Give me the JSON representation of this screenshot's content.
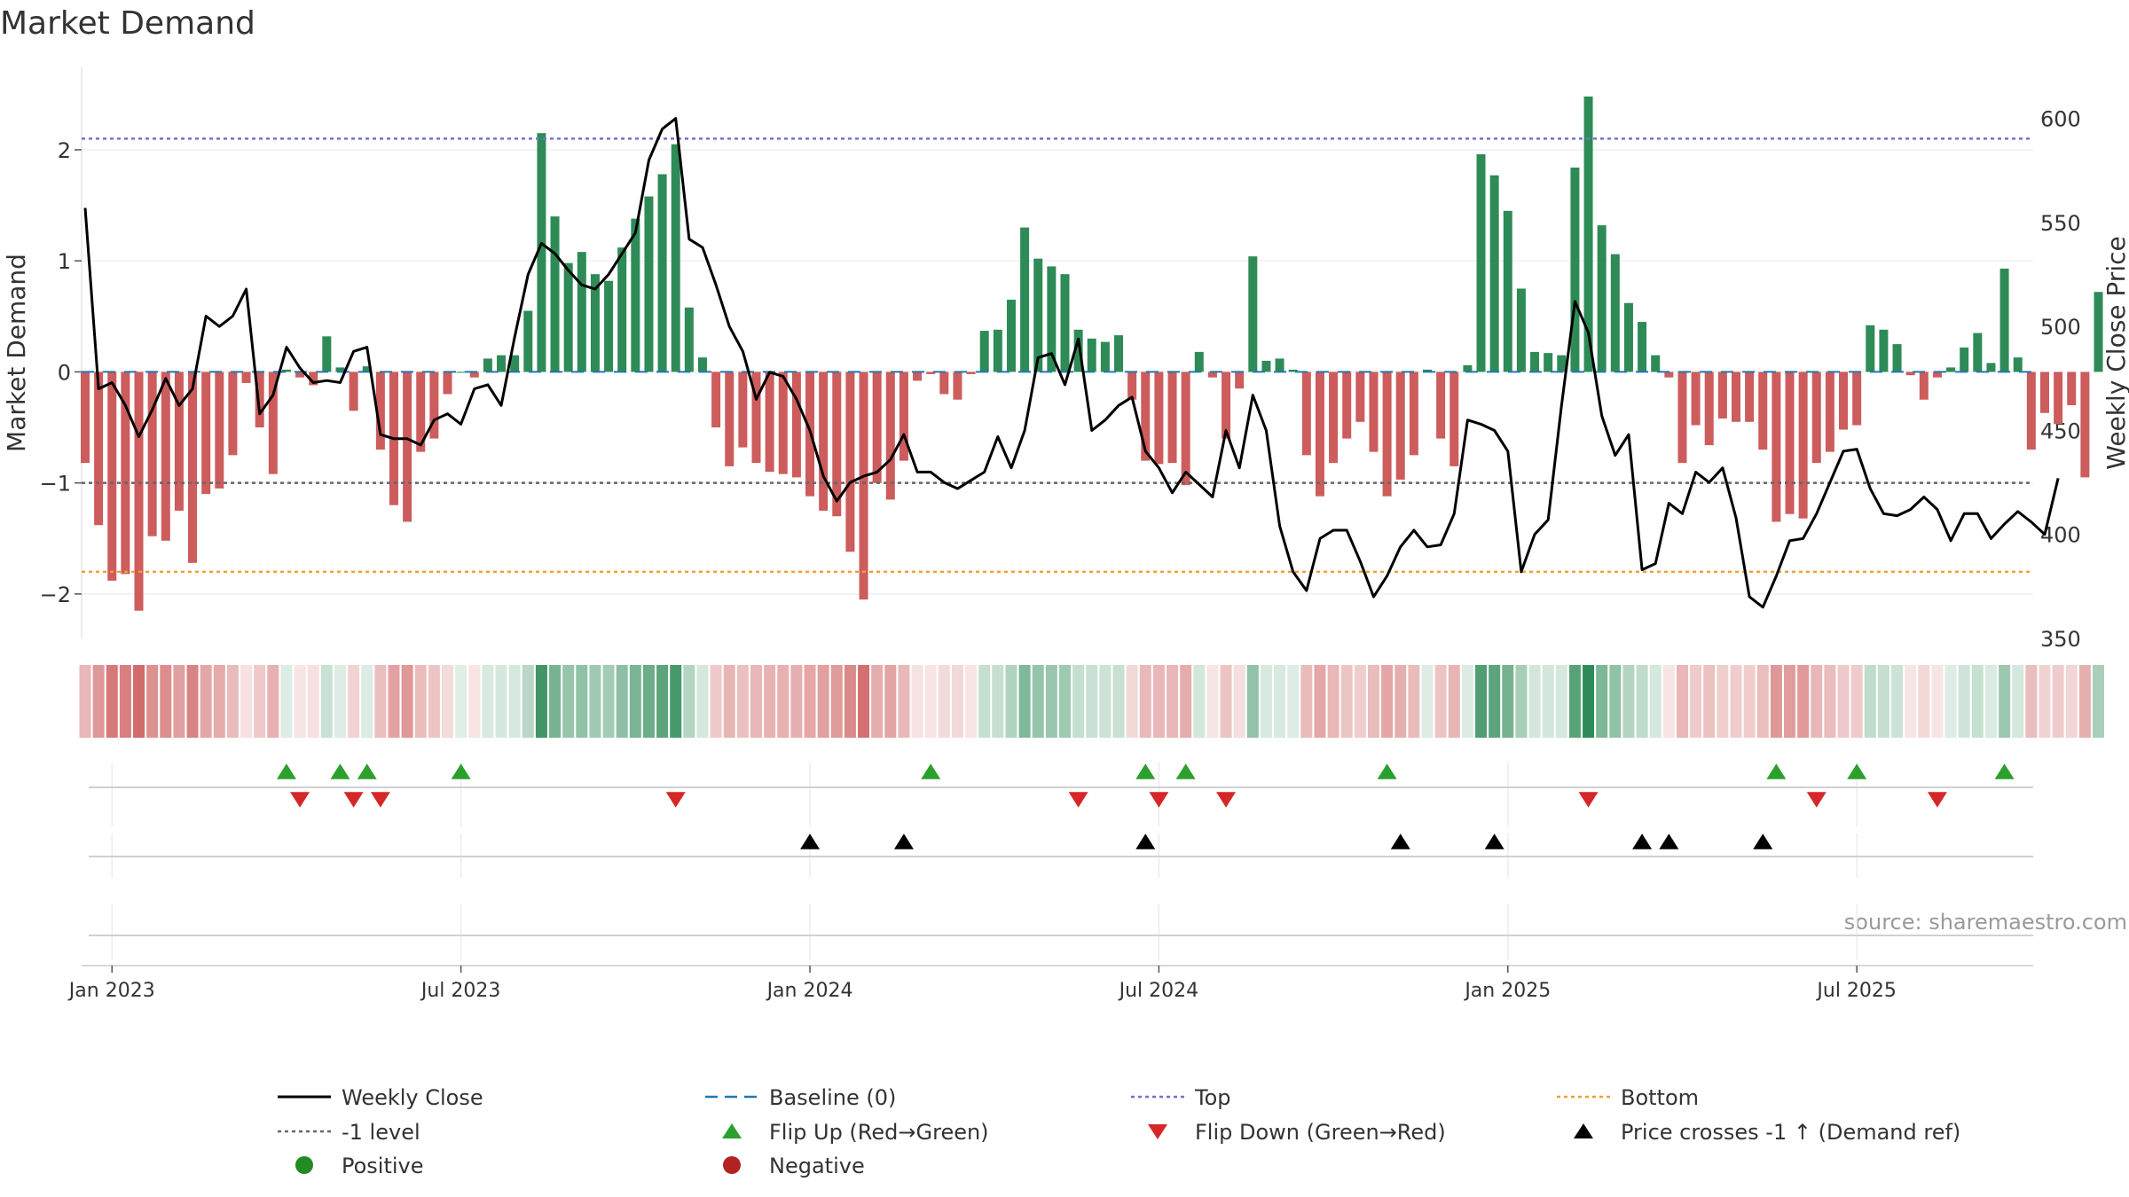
{
  "chart_data": {
    "type": "bar+line",
    "title": "Market Demand",
    "ylabel_left": "Market Demand",
    "ylabel_right": "Weekly Close Price",
    "source": "source: sharemaestro.com",
    "ylim_left": [
      -2.4,
      2.75
    ],
    "ylim_right": [
      350,
      625
    ],
    "yticks_left": [
      2,
      1,
      0,
      -1,
      -2
    ],
    "yticks_left_labels": [
      "2",
      "1",
      "0",
      "−1",
      "−2"
    ],
    "yticks_right": [
      600,
      550,
      500,
      450,
      400,
      350
    ],
    "yticks_right_labels": [
      "600",
      "550",
      "500",
      "450",
      "400",
      "350"
    ],
    "x_start": "2022-12-19",
    "x_step_days": 7,
    "xticks": [
      {
        "label": "Jan 2023",
        "week": 2
      },
      {
        "label": "Jul 2023",
        "week": 28
      },
      {
        "label": "Jan 2024",
        "week": 54
      },
      {
        "label": "Jul 2024",
        "week": 80
      },
      {
        "label": "Jan 2025",
        "week": 106
      },
      {
        "label": "Jul 2025",
        "week": 132
      }
    ],
    "reference_lines": {
      "top": 2.1,
      "bottom": -1.8,
      "minus_one": -1.0,
      "baseline": 0.0
    },
    "demand": [
      -0.82,
      -1.38,
      -1.88,
      -1.82,
      -2.15,
      -1.48,
      -1.52,
      -1.25,
      -1.72,
      -1.1,
      -1.05,
      -0.75,
      -0.1,
      -0.5,
      -0.92,
      0.02,
      -0.05,
      -0.12,
      0.32,
      0.04,
      -0.35,
      0.05,
      -0.7,
      -1.2,
      -1.35,
      -0.72,
      -0.6,
      -0.2,
      0.0,
      -0.05,
      0.12,
      0.15,
      0.15,
      0.55,
      2.15,
      1.4,
      0.98,
      1.08,
      0.88,
      0.82,
      1.12,
      1.38,
      1.58,
      1.78,
      2.05,
      0.58,
      0.13,
      -0.5,
      -0.85,
      -0.68,
      -0.82,
      -0.9,
      -0.92,
      -0.95,
      -1.12,
      -1.25,
      -1.3,
      -1.62,
      -2.05,
      -1.0,
      -1.15,
      -0.8,
      -0.08,
      -0.02,
      -0.2,
      -0.25,
      -0.02,
      0.37,
      0.38,
      0.65,
      1.3,
      1.02,
      0.95,
      0.88,
      0.38,
      0.3,
      0.27,
      0.33,
      -0.25,
      -0.8,
      -0.83,
      -0.82,
      -1.02,
      0.18,
      -0.05,
      -0.6,
      -0.15,
      1.04,
      0.1,
      0.12,
      0.02,
      -0.75,
      -1.12,
      -0.82,
      -0.6,
      -0.45,
      -0.72,
      -1.12,
      -0.97,
      -0.75,
      0.02,
      -0.6,
      -0.85,
      0.06,
      1.96,
      1.77,
      1.45,
      0.75,
      0.18,
      0.17,
      0.15,
      1.84,
      2.48,
      1.32,
      1.06,
      0.62,
      0.45,
      0.15,
      -0.05,
      -0.82,
      -0.48,
      -0.66,
      -0.42,
      -0.45,
      -0.45,
      -0.7,
      -1.35,
      -1.28,
      -1.32,
      -0.82,
      -0.72,
      -0.52,
      -0.48,
      0.42,
      0.38,
      0.25,
      -0.03,
      -0.25,
      -0.05,
      0.04,
      0.22,
      0.35,
      0.08,
      0.93,
      0.13,
      -0.7,
      -0.37,
      -0.47,
      -0.3,
      -0.95,
      0.72
    ],
    "weekly_close": [
      557,
      470,
      473,
      462,
      447,
      460,
      475,
      462,
      470,
      505,
      500,
      505,
      518,
      458,
      467,
      490,
      480,
      473,
      474,
      473,
      488,
      490,
      448,
      446,
      446,
      443,
      455,
      458,
      453,
      470,
      472,
      462,
      495,
      525,
      540,
      535,
      527,
      520,
      518,
      525,
      535,
      545,
      580,
      595,
      600,
      542,
      538,
      520,
      500,
      488,
      465,
      478,
      476,
      465,
      450,
      428,
      416,
      425,
      428,
      430,
      436,
      448,
      430,
      430,
      425,
      422,
      426,
      430,
      447,
      432,
      450,
      485,
      487,
      472,
      494,
      450,
      455,
      462,
      466,
      440,
      432,
      420,
      430,
      424,
      418,
      450,
      432,
      467,
      450,
      404,
      382,
      373,
      398,
      402,
      402,
      387,
      370,
      380,
      394,
      402,
      394,
      395,
      410,
      455,
      453,
      450,
      440,
      382,
      400,
      407,
      462,
      512,
      497,
      457,
      438,
      448,
      383,
      386,
      415,
      410,
      430,
      425,
      432,
      408,
      370,
      365,
      380,
      397,
      398,
      410,
      425,
      440,
      441,
      422,
      410,
      409,
      412,
      418,
      412,
      397,
      410,
      410,
      398,
      405,
      411,
      406,
      400,
      427
    ],
    "flip_up_weeks": [
      15,
      19,
      21,
      28,
      63,
      79,
      82,
      97,
      126,
      132,
      143
    ],
    "flip_down_weeks": [
      16,
      20,
      22,
      44,
      74,
      80,
      85,
      112,
      129,
      138
    ],
    "price_cross_weeks": [
      54,
      61,
      79,
      98,
      105,
      116,
      118,
      125
    ],
    "legend": [
      {
        "label": "Weekly Close",
        "marker": "line",
        "color": "#000000"
      },
      {
        "label": "Baseline (0)",
        "marker": "dash",
        "color": "#1f77b4"
      },
      {
        "label": "Top",
        "marker": "dot",
        "color": "#7070d8"
      },
      {
        "label": "Bottom",
        "marker": "dot",
        "color": "#f0a030"
      },
      {
        "label": "-1 level",
        "marker": "dot",
        "color": "#666666"
      },
      {
        "label": "Flip Up (Red→Green)",
        "marker": "tri-up",
        "color": "#2ca02c"
      },
      {
        "label": "Flip Down (Green→Red)",
        "marker": "tri-down",
        "color": "#d62728"
      },
      {
        "label": "Price crosses -1 ↑ (Demand ref)",
        "marker": "tri-up",
        "color": "#000000"
      },
      {
        "label": "Positive",
        "marker": "circle",
        "color": "#228b22"
      },
      {
        "label": "Negative",
        "marker": "circle",
        "color": "#b22222"
      }
    ],
    "colors": {
      "positive_bar": "#2e8b57",
      "negative_bar": "#cd5c5c",
      "heat_positive": "#2e8b57",
      "heat_negative": "#cd5c5c"
    }
  }
}
